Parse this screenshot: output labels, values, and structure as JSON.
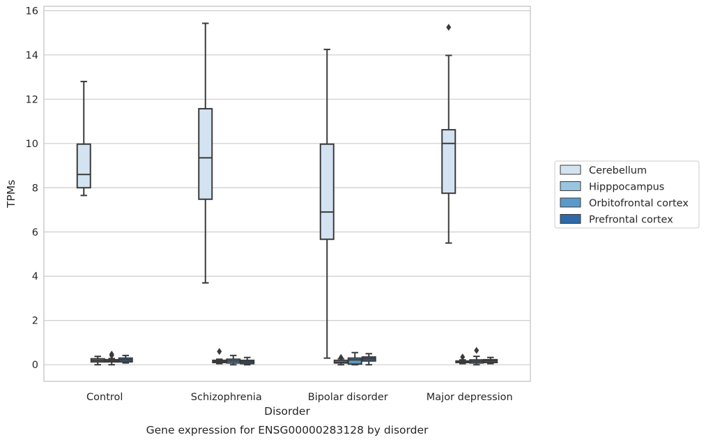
{
  "chart_data": {
    "type": "boxplot",
    "caption": "Gene expression for ENSG00000283128 by disorder",
    "xlabel": "Disorder",
    "ylabel": "TPMs",
    "ylim": [
      -0.75,
      16.2
    ],
    "yticks": [
      0,
      2,
      4,
      6,
      8,
      10,
      12,
      14,
      16
    ],
    "grid": "horizontal",
    "legend_position": "right",
    "categories": [
      "Control",
      "Schizophrenia",
      "Bipolar disorder",
      "Major depression"
    ],
    "series": [
      {
        "name": "Cerebellum",
        "color": "#d4e3f1",
        "boxes": [
          {
            "whislo": 7.65,
            "q1": 8.0,
            "med": 8.6,
            "q3": 9.97,
            "whishi": 12.8,
            "fliers": []
          },
          {
            "whislo": 3.7,
            "q1": 7.48,
            "med": 9.35,
            "q3": 11.57,
            "whishi": 15.43,
            "fliers": []
          },
          {
            "whislo": 0.3,
            "q1": 5.67,
            "med": 6.9,
            "q3": 9.97,
            "whishi": 14.25,
            "fliers": []
          },
          {
            "whislo": 5.5,
            "q1": 7.75,
            "med": 10.0,
            "q3": 10.62,
            "whishi": 13.98,
            "fliers": [
              15.25
            ]
          }
        ]
      },
      {
        "name": "Hipppocampus",
        "color": "#9ac5df",
        "boxes": [
          {
            "whislo": 0.0,
            "q1": 0.13,
            "med": 0.2,
            "q3": 0.27,
            "whishi": 0.38,
            "fliers": []
          },
          {
            "whislo": 0.05,
            "q1": 0.1,
            "med": 0.15,
            "q3": 0.2,
            "whishi": 0.25,
            "fliers": [
              0.6
            ]
          },
          {
            "whislo": 0.0,
            "q1": 0.08,
            "med": 0.12,
            "q3": 0.2,
            "whishi": 0.27,
            "fliers": [
              0.33
            ]
          },
          {
            "whislo": 0.05,
            "q1": 0.1,
            "med": 0.13,
            "q3": 0.17,
            "whishi": 0.22,
            "fliers": [
              0.35
            ]
          }
        ]
      },
      {
        "name": "Orbitofrontal cortex",
        "color": "#5a9ac9",
        "boxes": [
          {
            "whislo": 0.0,
            "q1": 0.13,
            "med": 0.17,
            "q3": 0.23,
            "whishi": 0.28,
            "fliers": [
              0.42,
              0.48
            ]
          },
          {
            "whislo": 0.0,
            "q1": 0.08,
            "med": 0.17,
            "q3": 0.25,
            "whishi": 0.42,
            "fliers": []
          },
          {
            "whislo": 0.0,
            "q1": 0.03,
            "med": 0.22,
            "q3": 0.3,
            "whishi": 0.55,
            "fliers": []
          },
          {
            "whislo": 0.0,
            "q1": 0.08,
            "med": 0.15,
            "q3": 0.22,
            "whishi": 0.38,
            "fliers": [
              0.65
            ]
          }
        ]
      },
      {
        "name": "Prefrontal cortex",
        "color": "#2f6aa8",
        "boxes": [
          {
            "whislo": 0.08,
            "q1": 0.13,
            "med": 0.22,
            "q3": 0.3,
            "whishi": 0.42,
            "fliers": []
          },
          {
            "whislo": 0.0,
            "q1": 0.05,
            "med": 0.13,
            "q3": 0.2,
            "whishi": 0.33,
            "fliers": []
          },
          {
            "whislo": 0.0,
            "q1": 0.17,
            "med": 0.27,
            "q3": 0.35,
            "whishi": 0.5,
            "fliers": []
          },
          {
            "whislo": 0.05,
            "q1": 0.1,
            "med": 0.18,
            "q3": 0.23,
            "whishi": 0.33,
            "fliers": []
          }
        ]
      }
    ]
  }
}
